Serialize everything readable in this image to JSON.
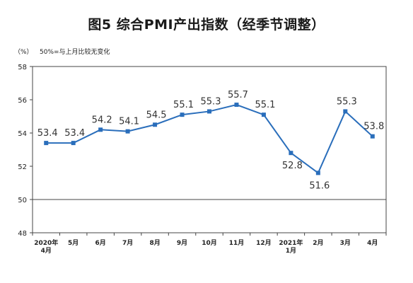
{
  "chart_data": {
    "type": "line",
    "title": "图5 综合PMI产出指数（经季节调整）",
    "ylabel": "（%）",
    "annotation": "50%=与上月比较无变化",
    "ylim": [
      48,
      58
    ],
    "yticks": [
      "48",
      "50",
      "52",
      "54",
      "56",
      "58"
    ],
    "reference_line": 50,
    "grid": false,
    "line_color": "#2a6ebb",
    "categories": [
      [
        "2020年",
        "4月"
      ],
      [
        "5月"
      ],
      [
        "6月"
      ],
      [
        "7月"
      ],
      [
        "8月"
      ],
      [
        "9月"
      ],
      [
        "10月"
      ],
      [
        "11月"
      ],
      [
        "12月"
      ],
      [
        "2021年",
        "1月"
      ],
      [
        "2月"
      ],
      [
        "3月"
      ],
      [
        "4月"
      ]
    ],
    "values": [
      53.4,
      53.4,
      54.2,
      54.1,
      54.5,
      55.1,
      55.3,
      55.7,
      55.1,
      52.8,
      51.6,
      55.3,
      53.8
    ],
    "labels": [
      "53.4",
      "53.4",
      "54.2",
      "54.1",
      "54.5",
      "55.1",
      "55.3",
      "55.7",
      "55.1",
      "52.8",
      "51.6",
      "55.3",
      "53.8"
    ]
  }
}
